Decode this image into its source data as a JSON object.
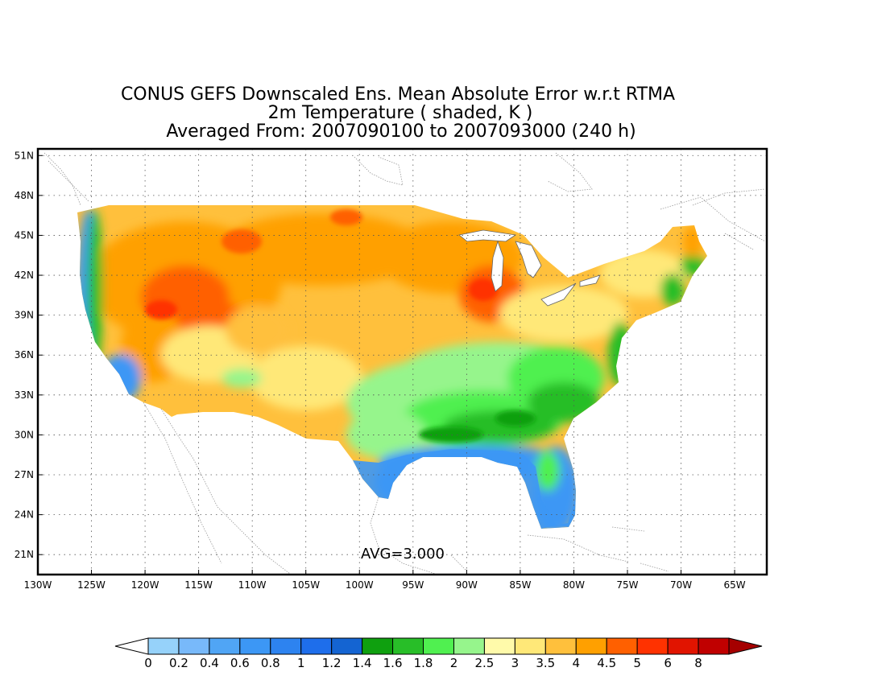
{
  "title": {
    "line1": "CONUS GEFS Downscaled Ens. Mean Absolute Error w.r.t RTMA",
    "line2": "2m Temperature ( shaded, K )",
    "line3": "Averaged From: 2007090100 to 2007093000 (240 h)"
  },
  "map": {
    "lon_range": [
      -130,
      -62
    ],
    "lat_range": [
      19.5,
      51.5
    ],
    "lon_ticks": [
      "130W",
      "125W",
      "120W",
      "115W",
      "110W",
      "105W",
      "100W",
      "95W",
      "90W",
      "85W",
      "80W",
      "75W",
      "70W",
      "65W"
    ],
    "lon_values": [
      -130,
      -125,
      -120,
      -115,
      -110,
      -105,
      -100,
      -95,
      -90,
      -85,
      -80,
      -75,
      -70,
      -65
    ],
    "lat_ticks": [
      "21N",
      "24N",
      "27N",
      "30N",
      "33N",
      "36N",
      "39N",
      "42N",
      "45N",
      "48N",
      "51N"
    ],
    "lat_values": [
      21,
      24,
      27,
      30,
      33,
      36,
      39,
      42,
      45,
      48,
      51
    ],
    "grid": true,
    "avg_label": "AVG=3.000"
  },
  "colorbar": {
    "labels": [
      "0",
      "0.2",
      "0.4",
      "0.6",
      "0.8",
      "1",
      "1.2",
      "1.4",
      "1.6",
      "1.8",
      "2",
      "2.5",
      "3",
      "3.5",
      "4",
      "4.5",
      "5",
      "6",
      "8"
    ],
    "colors": [
      "#96d2fa",
      "#78b9fa",
      "#50a5f5",
      "#3c97f5",
      "#2d83f0",
      "#1e6eeb",
      "#1464d2",
      "#0fa00f",
      "#28be28",
      "#50f050",
      "#96f58c",
      "#fffaaa",
      "#ffe878",
      "#ffc03c",
      "#ffa000",
      "#ff6000",
      "#ff3200",
      "#e11400",
      "#c00000"
    ],
    "under_color": "#ffffff",
    "over_color": "#a50000"
  }
}
